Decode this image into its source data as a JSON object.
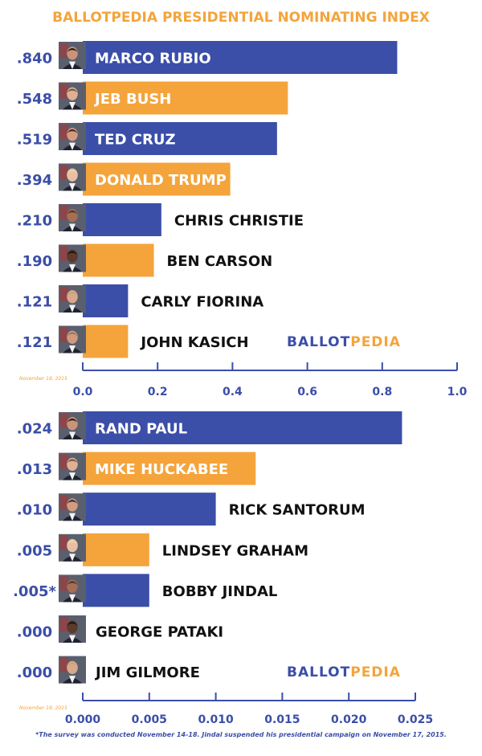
{
  "title": "BALLOTPEDIA PRESIDENTIAL NOMINATING INDEX",
  "footnote": "*The survey was conducted November 14-18. Jindal suspended his presidential campaign on November 17, 2015.",
  "colors": {
    "blue": "#3b4ea8",
    "orange": "#f4a43b",
    "text": "#111111"
  },
  "chart_data": [
    {
      "type": "bar",
      "orientation": "horizontal",
      "date_note": "November 18, 2015",
      "watermark": {
        "part1": "BALLOT",
        "part2": "PEDIA"
      },
      "xlim": [
        0,
        1.0
      ],
      "ticks": [
        "0.0",
        "0.2",
        "0.4",
        "0.6",
        "0.8",
        "1.0"
      ],
      "tick_values": [
        0,
        0.2,
        0.4,
        0.6,
        0.8,
        1.0
      ],
      "bars": [
        {
          "name": "MARCO RUBIO",
          "value": 0.84,
          "label": ".840",
          "color": "blue",
          "portrait": "portrait-icon"
        },
        {
          "name": "JEB BUSH",
          "value": 0.548,
          "label": ".548",
          "color": "orange",
          "portrait": "portrait-icon"
        },
        {
          "name": "TED CRUZ",
          "value": 0.519,
          "label": ".519",
          "color": "blue",
          "portrait": "portrait-icon"
        },
        {
          "name": "DONALD TRUMP",
          "value": 0.394,
          "label": ".394",
          "color": "orange",
          "portrait": "portrait-icon"
        },
        {
          "name": "CHRIS CHRISTIE",
          "value": 0.21,
          "label": ".210",
          "color": "blue",
          "portrait": "portrait-icon"
        },
        {
          "name": "BEN CARSON",
          "value": 0.19,
          "label": ".190",
          "color": "orange",
          "portrait": "portrait-icon"
        },
        {
          "name": "CARLY FIORINA",
          "value": 0.121,
          "label": ".121",
          "color": "blue",
          "portrait": "portrait-icon"
        },
        {
          "name": "JOHN KASICH",
          "value": 0.121,
          "label": ".121",
          "color": "orange",
          "portrait": "portrait-icon"
        }
      ]
    },
    {
      "type": "bar",
      "orientation": "horizontal",
      "date_note": "November 18, 2015",
      "watermark": {
        "part1": "BALLOT",
        "part2": "PEDIA"
      },
      "xlim": [
        0,
        0.025
      ],
      "ticks": [
        "0.000",
        "0.005",
        "0.010",
        "0.015",
        "0.020",
        "0.025"
      ],
      "tick_values": [
        0,
        0.005,
        0.01,
        0.015,
        0.02,
        0.025
      ],
      "bars": [
        {
          "name": "RAND PAUL",
          "value": 0.024,
          "label": ".024",
          "color": "blue",
          "portrait": "portrait-icon"
        },
        {
          "name": "MIKE HUCKABEE",
          "value": 0.013,
          "label": ".013",
          "color": "orange",
          "portrait": "portrait-icon"
        },
        {
          "name": "RICK SANTORUM",
          "value": 0.01,
          "label": ".010",
          "color": "blue",
          "portrait": "portrait-icon"
        },
        {
          "name": "LINDSEY GRAHAM",
          "value": 0.005,
          "label": ".005",
          "color": "orange",
          "portrait": "portrait-icon"
        },
        {
          "name": "BOBBY JINDAL",
          "value": 0.005,
          "label": ".005*",
          "color": "blue",
          "portrait": "portrait-icon"
        },
        {
          "name": "GEORGE PATAKI",
          "value": 0.0,
          "label": ".000",
          "color": "orange",
          "portrait": "portrait-icon"
        },
        {
          "name": "JIM GILMORE",
          "value": 0.0,
          "label": ".000",
          "color": "blue",
          "portrait": "portrait-icon"
        }
      ]
    }
  ]
}
